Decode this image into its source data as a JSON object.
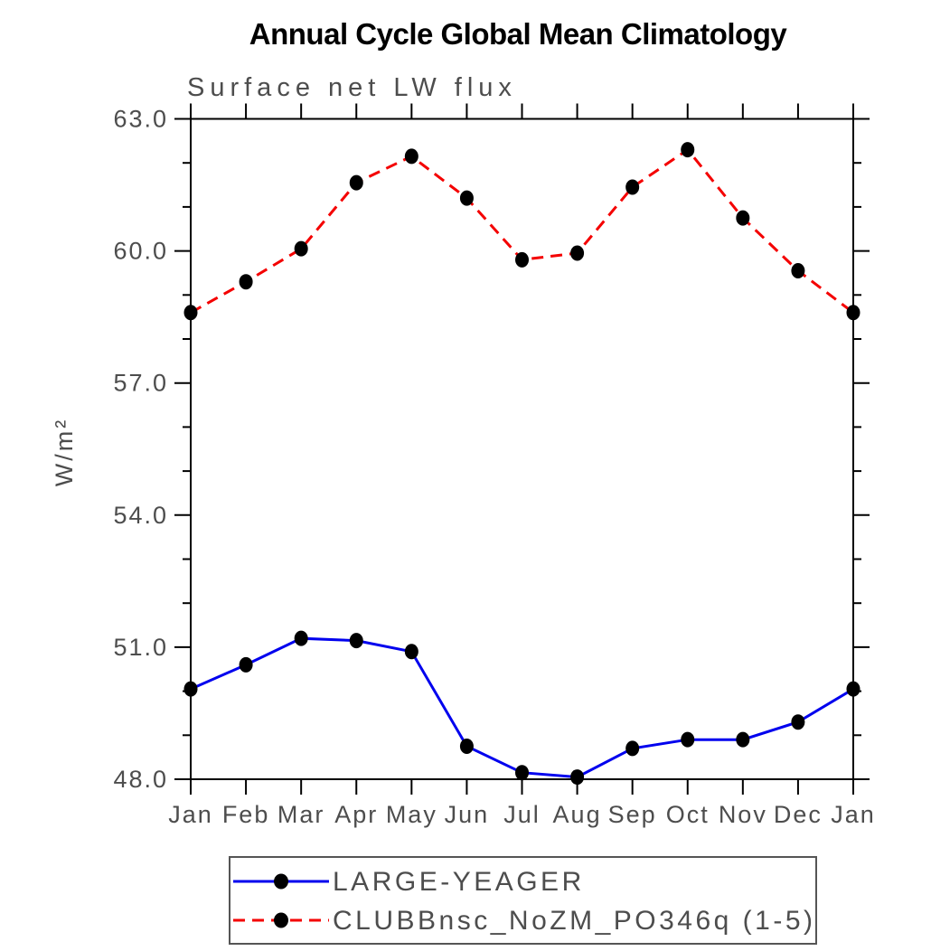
{
  "chart_data": {
    "type": "line",
    "title": "Annual Cycle Global Mean Climatology",
    "subtitle": "Surface net LW flux",
    "xlabel": "",
    "ylabel": "W/m²",
    "categories": [
      "Jan",
      "Feb",
      "Mar",
      "Apr",
      "May",
      "Jun",
      "Jul",
      "Aug",
      "Sep",
      "Oct",
      "Nov",
      "Dec",
      "Jan"
    ],
    "ylim": [
      48.0,
      63.0
    ],
    "yticks": [
      48.0,
      51.0,
      54.0,
      57.0,
      60.0,
      63.0
    ],
    "ytick_labels": [
      "48.0",
      "51.0",
      "54.0",
      "57.0",
      "60.0",
      "63.0"
    ],
    "minor_tick_interval": 1.0,
    "grid": false,
    "legend_position": "bottom",
    "series": [
      {
        "name": "LARGE-YEAGER",
        "color": "#0000ee",
        "line_style": "solid",
        "marker": "filled-circle",
        "marker_color": "#000000",
        "values": [
          50.05,
          50.6,
          51.2,
          51.15,
          50.9,
          48.75,
          48.15,
          48.05,
          48.7,
          48.9,
          48.9,
          49.3,
          50.05
        ]
      },
      {
        "name": "CLUBBnsc_NoZM_PO346q (1-5)",
        "color": "#f40000",
        "line_style": "dashed",
        "marker": "filled-circle",
        "marker_color": "#000000",
        "values": [
          58.6,
          59.3,
          60.05,
          61.55,
          62.15,
          61.2,
          59.8,
          59.95,
          61.45,
          62.3,
          60.75,
          59.55,
          58.6
        ]
      }
    ],
    "colors": {
      "axis": "#000000",
      "labels": "#4d4d4d",
      "background": "#ffffff",
      "legend_border": "#555555"
    }
  }
}
